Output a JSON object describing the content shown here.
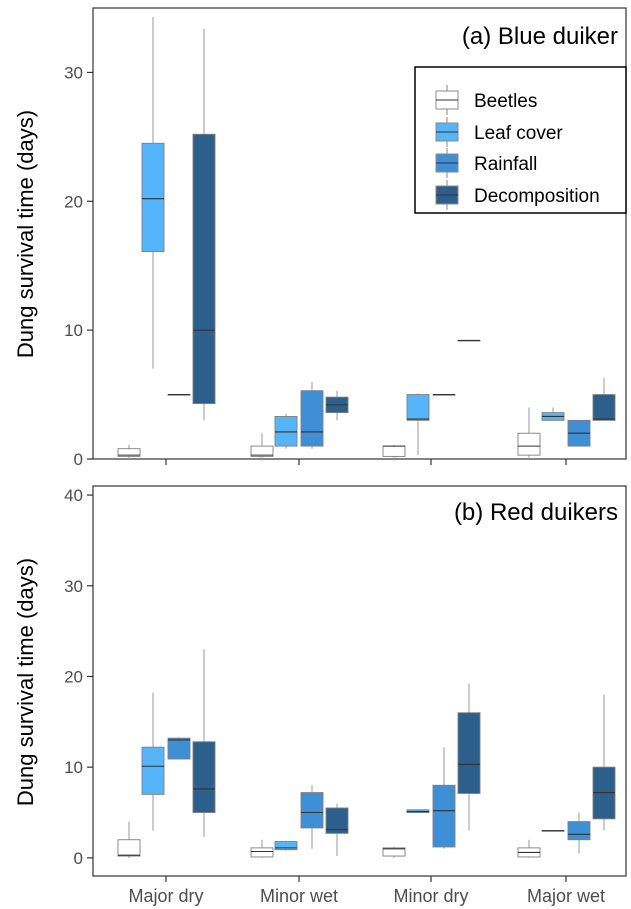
{
  "chart_data": [
    {
      "type": "box",
      "title": "(a) Blue duiker",
      "ylabel": "Dung survival time (days)",
      "ylim": [
        0,
        35
      ],
      "yticks": [
        0,
        10,
        20,
        30
      ],
      "categories": [
        "Major dry",
        "Minor wet",
        "Minor dry",
        "Major wet"
      ],
      "show_category_labels": false,
      "legend": {
        "placement": "top-right",
        "entries": [
          "Beetles",
          "Leaf cover",
          "Rainfall",
          "Decomposition"
        ]
      },
      "series": [
        {
          "name": "Beetles",
          "color": "#ffffff",
          "boxes": [
            {
              "min": 0.0,
              "q1": 0.2,
              "median": 0.3,
              "q3": 0.8,
              "max": 1.1
            },
            {
              "min": 0.0,
              "q1": 0.2,
              "median": 0.3,
              "q3": 1.0,
              "max": 2.0
            },
            {
              "min": 0.0,
              "q1": 0.2,
              "median": 1.0,
              "q3": 1.0,
              "max": 1.1
            },
            {
              "min": 0.1,
              "q1": 0.3,
              "median": 1.0,
              "q3": 2.0,
              "max": 4.0
            }
          ]
        },
        {
          "name": "Leaf cover",
          "color": "#56b4f8",
          "boxes": [
            {
              "min": 7.0,
              "q1": 16.1,
              "median": 20.2,
              "q3": 24.5,
              "max": 34.3
            },
            {
              "min": 0.8,
              "q1": 1.0,
              "median": 2.1,
              "q3": 3.3,
              "max": 3.5
            },
            {
              "min": 0.3,
              "q1": 3.0,
              "median": 3.1,
              "q3": 5.0,
              "max": 5.1
            },
            {
              "min": 3.0,
              "q1": 3.0,
              "median": 3.3,
              "q3": 3.6,
              "max": 4.0
            }
          ]
        },
        {
          "name": "Rainfall",
          "color": "#3f8fd6",
          "boxes": [
            {
              "min": 5.0,
              "q1": 5.0,
              "median": 5.0,
              "q3": 5.0,
              "max": 5.0
            },
            {
              "min": 0.8,
              "q1": 1.0,
              "median": 2.1,
              "q3": 5.3,
              "max": 6.0
            },
            {
              "min": 5.0,
              "q1": 5.0,
              "median": 5.0,
              "q3": 5.0,
              "max": 5.0
            },
            {
              "min": 1.0,
              "q1": 1.0,
              "median": 2.0,
              "q3": 3.0,
              "max": 3.0
            }
          ]
        },
        {
          "name": "Decomposition",
          "color": "#2c5f8c",
          "boxes": [
            {
              "min": 3.0,
              "q1": 4.3,
              "median": 10.0,
              "q3": 25.2,
              "max": 33.4
            },
            {
              "min": 3.0,
              "q1": 3.6,
              "median": 4.2,
              "q3": 4.8,
              "max": 5.3
            },
            {
              "min": 9.2,
              "q1": 9.2,
              "median": 9.2,
              "q3": 9.2,
              "max": 9.2
            },
            {
              "min": 3.0,
              "q1": 3.0,
              "median": 3.1,
              "q3": 5.0,
              "max": 6.3
            }
          ]
        }
      ]
    },
    {
      "type": "box",
      "title": "(b) Red duikers",
      "ylabel": "Dung survival time (days)",
      "ylim": [
        -2,
        41
      ],
      "yticks": [
        0,
        10,
        20,
        30,
        40
      ],
      "categories": [
        "Major dry",
        "Minor wet",
        "Minor dry",
        "Major wet"
      ],
      "show_category_labels": true,
      "series": [
        {
          "name": "Beetles",
          "color": "#ffffff",
          "boxes": [
            {
              "min": 0.0,
              "q1": 0.2,
              "median": 0.3,
              "q3": 2.0,
              "max": 4.0
            },
            {
              "min": 0.0,
              "q1": 0.1,
              "median": 0.7,
              "q3": 1.1,
              "max": 2.0
            },
            {
              "min": 0.0,
              "q1": 0.2,
              "median": 1.0,
              "q3": 1.1,
              "max": 1.2
            },
            {
              "min": 0.0,
              "q1": 0.1,
              "median": 0.6,
              "q3": 1.1,
              "max": 2.0
            }
          ]
        },
        {
          "name": "Leaf cover",
          "color": "#56b4f8",
          "boxes": [
            {
              "min": 3.0,
              "q1": 7.0,
              "median": 10.1,
              "q3": 12.2,
              "max": 18.2
            },
            {
              "min": 0.8,
              "q1": 0.9,
              "median": 1.1,
              "q3": 1.8,
              "max": 1.9
            },
            {
              "min": 5.0,
              "q1": 5.0,
              "median": 5.1,
              "q3": 5.3,
              "max": 5.3
            },
            {
              "min": 3.0,
              "q1": 3.0,
              "median": 3.0,
              "q3": 3.0,
              "max": 3.0
            }
          ]
        },
        {
          "name": "Rainfall",
          "color": "#3f8fd6",
          "boxes": [
            {
              "min": 10.9,
              "q1": 10.9,
              "median": 13.0,
              "q3": 13.2,
              "max": 13.3
            },
            {
              "min": 1.0,
              "q1": 3.3,
              "median": 5.0,
              "q3": 7.2,
              "max": 8.0
            },
            {
              "min": 1.0,
              "q1": 1.2,
              "median": 5.2,
              "q3": 8.0,
              "max": 12.2
            },
            {
              "min": 0.5,
              "q1": 2.0,
              "median": 2.6,
              "q3": 4.0,
              "max": 5.0
            }
          ]
        },
        {
          "name": "Decomposition",
          "color": "#2c5f8c",
          "boxes": [
            {
              "min": 2.3,
              "q1": 5.0,
              "median": 7.6,
              "q3": 12.8,
              "max": 23.0
            },
            {
              "min": 0.2,
              "q1": 2.7,
              "median": 3.1,
              "q3": 5.5,
              "max": 6.0
            },
            {
              "min": 3.0,
              "q1": 7.1,
              "median": 10.3,
              "q3": 16.0,
              "max": 19.2
            },
            {
              "min": 3.0,
              "q1": 4.3,
              "median": 7.2,
              "q3": 10.0,
              "max": 18.0
            }
          ]
        }
      ]
    }
  ]
}
